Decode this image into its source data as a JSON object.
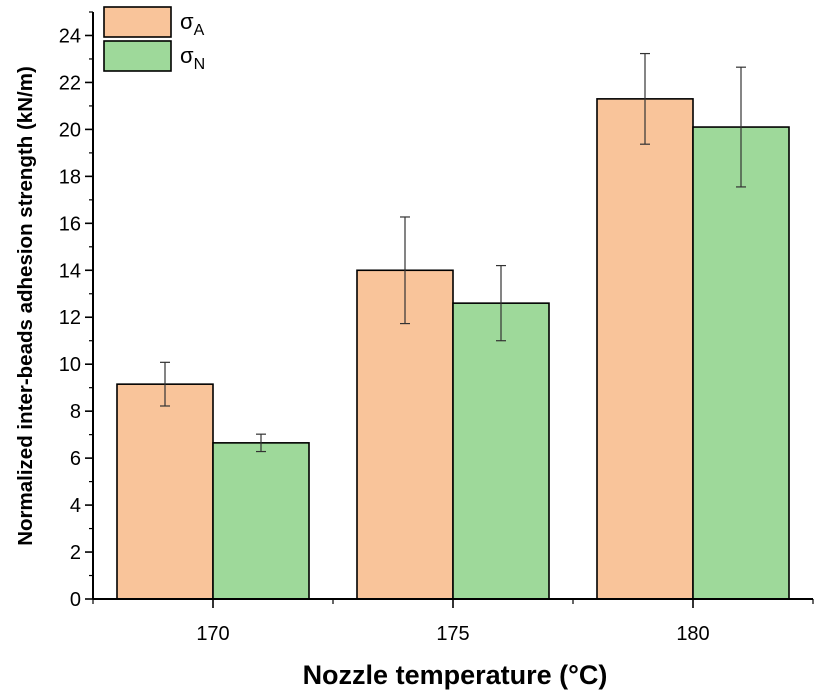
{
  "chart_data": {
    "type": "bar",
    "title": "",
    "xlabel": "Nozzle temperature (°C)",
    "ylabel": "Normalized inter-beads adhesion strength (kN/m)",
    "categories": [
      "170",
      "175",
      "180"
    ],
    "ylim": [
      0,
      25
    ],
    "yticks": [
      0,
      2,
      4,
      6,
      8,
      10,
      12,
      14,
      16,
      18,
      20,
      22,
      24
    ],
    "grid": false,
    "legend_position": "top-left",
    "series": [
      {
        "name": "σA",
        "symbol": "σ",
        "subscript": "A",
        "color": "#F9C49A",
        "values": [
          9.15,
          14.0,
          21.3
        ],
        "errors": [
          0.93,
          2.27,
          1.93
        ]
      },
      {
        "name": "σN",
        "symbol": "σ",
        "subscript": "N",
        "color": "#9ED99A",
        "values": [
          6.65,
          12.6,
          20.1
        ],
        "errors": [
          0.37,
          1.6,
          2.55
        ]
      }
    ]
  }
}
